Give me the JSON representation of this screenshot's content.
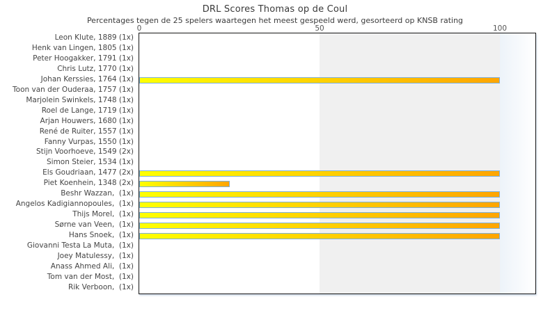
{
  "chart_data": {
    "type": "bar",
    "orientation": "horizontal",
    "title": "DRL Scores Thomas op de Coul",
    "subtitle": "Percentages tegen de 25 spelers waartegen het meest gespeeld werd, gesorteerd op KNSB rating",
    "categories": [
      "Leon Klute, 1889 (1x)",
      "Henk van Lingen, 1805 (1x)",
      "Peter Hoogakker, 1791 (1x)",
      "Chris Lutz, 1770 (1x)",
      "Johan Kerssies, 1764 (1x)",
      "Toon van der Ouderaa, 1757 (1x)",
      "Marjolein Swinkels, 1748 (1x)",
      "Roel de Lange, 1719 (1x)",
      "Arjan Houwers, 1680 (1x)",
      "René de Ruiter, 1557 (1x)",
      "Fanny Vurpas, 1550 (1x)",
      "Stijn Voorhoeve, 1549 (2x)",
      "Simon Steier, 1534 (1x)",
      "Els Goudriaan, 1477 (2x)",
      "Piet Koenhein, 1348 (2x)",
      "Beshr Wazzan,  (1x)",
      "Angelos Kadigiannopoules,  (1x)",
      "Thijs Morel,  (1x)",
      "Sørne van Veen,  (1x)",
      "Hans Snoek,  (1x)",
      "Giovanni Testa La Muta,  (1x)",
      "Joey Matulessy,  (1x)",
      "Anass Ahmed Ali,  (1x)",
      "Tom van der Most,  (1x)",
      "Rik Verboon,  (1x)"
    ],
    "values": [
      0,
      0,
      0,
      0,
      100,
      0,
      0,
      0,
      0,
      0,
      0,
      0,
      0,
      100,
      25,
      100,
      100,
      100,
      100,
      100,
      0,
      0,
      0,
      0,
      0
    ],
    "x_axis": {
      "position": "top",
      "min": 0,
      "max": 110,
      "ticks": [
        0,
        50,
        100
      ]
    },
    "y_axis_label": "",
    "x_axis_label": "",
    "legend": "none",
    "grid": false,
    "alternate_band": {
      "from": 50,
      "to": 100,
      "color": "#f0f0f0"
    },
    "colors": {
      "bar_gradient_start": "#ffff00",
      "bar_gradient_end": "#ffa500",
      "bar_border": "#7cb0dc",
      "plot_border": "#151515",
      "band": "#f0f0f0",
      "right_fade_start": "#edf3f9",
      "right_fade_end": "#ffffff",
      "title_color": "#3a3a3a",
      "tick_color": "#555555",
      "label_color": "#454545"
    }
  }
}
